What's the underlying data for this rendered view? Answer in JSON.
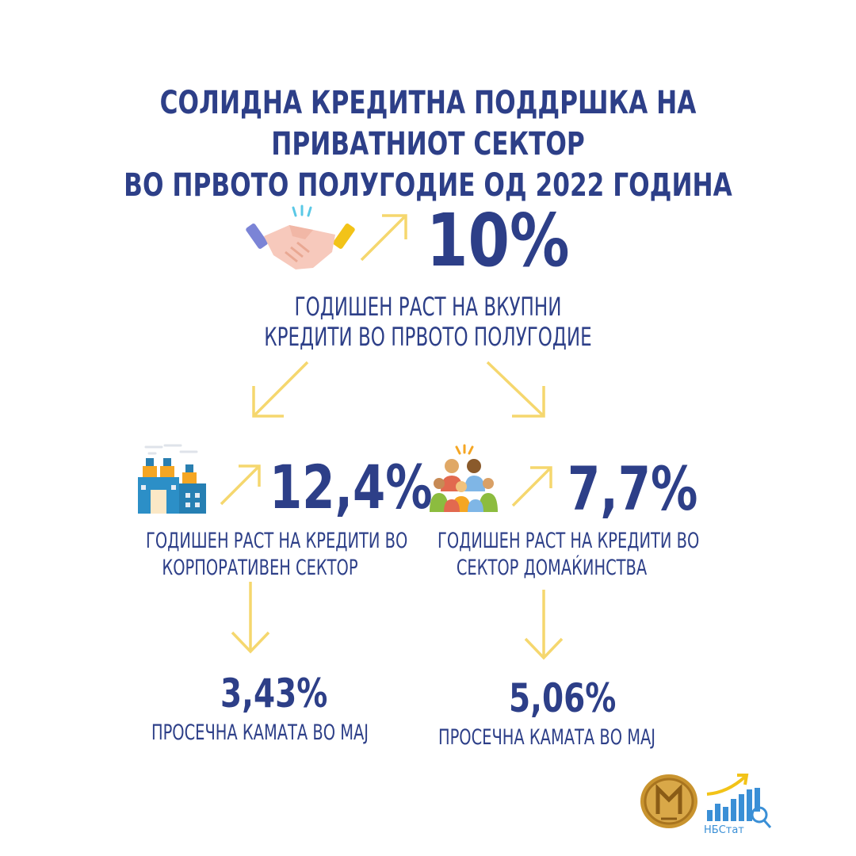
{
  "title": {
    "line1": "СОЛИДНА КРЕДИТНА ПОДДРШКА НА ПРИВАТНИОТ СЕКТОР",
    "line2": "ВО ПРВОТО ПОЛУГОДИЕ ОД 2022 ГОДИНА"
  },
  "total": {
    "value": "10%",
    "caption1": "ГОДИШЕН РАСТ НА ВКУПНИ",
    "caption2": "КРЕДИТИ ВО ПРВОТО ПОЛУГОДИЕ",
    "icon": "handshake-icon"
  },
  "corporate": {
    "value": "12,4%",
    "caption1": "ГОДИШЕН РАСТ НА КРЕДИТИ ВО",
    "caption2": "КОРПОРАТИВЕН СЕКТОР",
    "rate_value": "3,43%",
    "rate_caption": "ПРОСЕЧНА КАМАТА ВО МАЈ",
    "icon": "factory-icon"
  },
  "households": {
    "value": "7,7%",
    "caption1": "ГОДИШЕН РАСТ НА КРЕДИТИ ВО",
    "caption2": "СЕКТОР ДОМАЌИНСТВА",
    "rate_value": "5,06%",
    "rate_caption": "ПРОСЕЧНА КАМАТА ВО МАЈ",
    "icon": "family-icon"
  },
  "logos": {
    "coin_label": "coin-logo",
    "nbstat_text": "НБСтат"
  },
  "colors": {
    "navy": "#2d3f88",
    "arrow_yellow": "#f5d76e"
  }
}
